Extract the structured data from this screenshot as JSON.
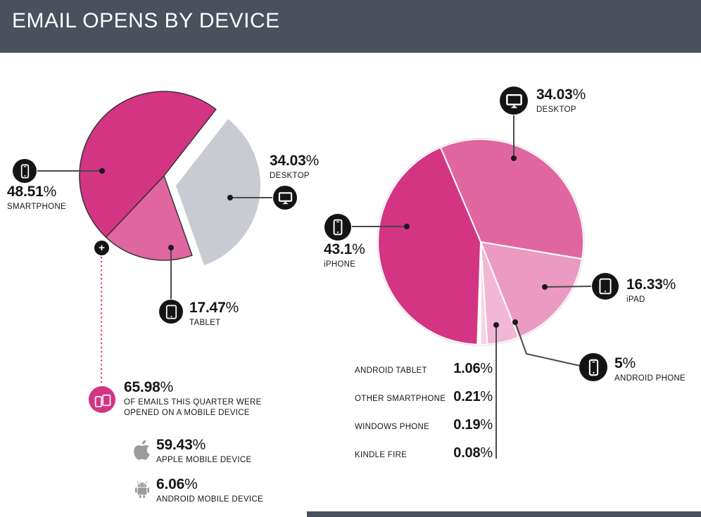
{
  "percent_sign": "%",
  "header": {
    "title": "EMAIL OPENS BY DEVICE"
  },
  "icons": {
    "plus": "+"
  },
  "colors": {
    "header_bg": "#4a515c",
    "deep_pink": "#d43484",
    "mid_pink": "#e0669f",
    "ipad_pink": "#eb9ac1",
    "pale_pink": "#f1b7d4",
    "gray_slice": "#c8cbd1",
    "connector_line": "#4a4a4a",
    "logo_gray": "#9b9b9b"
  },
  "left_chart": {
    "callouts": {
      "smartphone": {
        "num": "48.51",
        "label": "SMARTPHONE"
      },
      "desktop": {
        "num": "34.03",
        "label": "DESKTOP"
      },
      "tablet": {
        "num": "17.47",
        "label": "TABLET"
      }
    },
    "mobile_note": {
      "num": "65.98",
      "line1": "OF EMAILS THIS QUARTER WERE",
      "line2": "OPENED ON A MOBILE DEVICE"
    },
    "apple_note": {
      "num": "59.43",
      "label": "APPLE MOBILE DEVICE"
    },
    "android_note": {
      "num": "6.06",
      "label": "ANDROID MOBILE DEVICE"
    }
  },
  "right_chart": {
    "callouts": {
      "desktop": {
        "num": "34.03",
        "label": "DESKTOP"
      },
      "iphone": {
        "num": "43.1",
        "label": "iPHONE"
      },
      "ipad": {
        "num": "16.33",
        "label": "iPAD"
      },
      "android_phone": {
        "num": "5",
        "label": "ANDROID PHONE"
      }
    },
    "small_rows": [
      {
        "label": "ANDROID TABLET",
        "num": "1.06"
      },
      {
        "label": "OTHER SMARTPHONE",
        "num": "0.21"
      },
      {
        "label": "WINDOWS PHONE",
        "num": "0.19"
      },
      {
        "label": "KINDLE FIRE",
        "num": "0.08"
      }
    ]
  },
  "chart_data": [
    {
      "type": "pie",
      "unit": "%",
      "start_angle": 38,
      "explode_offset": [
        -17,
        -14
      ],
      "slices": [
        {
          "label": "DESKTOP",
          "value": 34.03,
          "color": "#c8cbd1"
        },
        {
          "label": "TABLET",
          "value": 17.47,
          "color": "#e0669f",
          "exploded": true,
          "outline": true
        },
        {
          "label": "SMARTPHONE",
          "value": 48.51,
          "color": "#d43484",
          "exploded": true,
          "outline": true
        }
      ],
      "annotations": [
        "65.98% OF EMAILS THIS QUARTER WERE OPENED ON A MOBILE DEVICE",
        "59.43% APPLE MOBILE DEVICE",
        "6.06% ANDROID MOBILE DEVICE"
      ]
    },
    {
      "type": "pie",
      "unit": "%",
      "start_angle": -23,
      "white_gaps": true,
      "slices": [
        {
          "label": "DESKTOP",
          "value": 34.03,
          "color": "#e0669f"
        },
        {
          "label": "iPAD",
          "value": 16.33,
          "color": "#eb9ac1"
        },
        {
          "label": "ANDROID PHONE",
          "value": 5,
          "color": "#f1b7d4"
        },
        {
          "label": "ANDROID TABLET",
          "value": 1.06,
          "color": "#f7d2e4"
        },
        {
          "label": "OTHER SMARTPHONE",
          "value": 0.21,
          "color": "#fae0ec"
        },
        {
          "label": "WINDOWS PHONE",
          "value": 0.19,
          "color": "#fce8f1"
        },
        {
          "label": "KINDLE FIRE",
          "value": 0.08,
          "color": "#fdeff5"
        },
        {
          "label": "iPHONE",
          "value": 43.1,
          "color": "#d43484"
        }
      ]
    }
  ]
}
